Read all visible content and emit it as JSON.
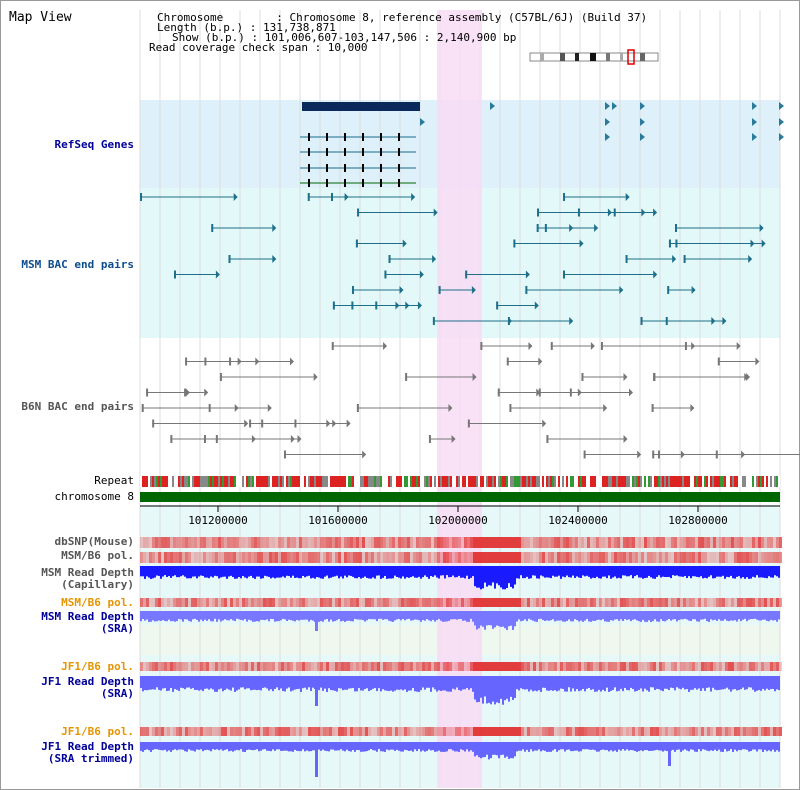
{
  "map": {
    "title": "Map View",
    "info": {
      "chromosome": "Chromosome        : Chromosome 8, reference assembly (C57BL/6J) (Build 37)",
      "length": "Length (b.p.) : 131,738,871",
      "show": "Show (b.p.) : 101,006,607-103,147,506 : 2,140,900 bp",
      "coverage": "Read coverage check span : 10,000"
    }
  },
  "tracks": {
    "refseq": "RefSeq Genes",
    "msm_bac": "MSM BAC end pairs",
    "b6n_bac": "B6N BAC end pairs",
    "repeat": "Repeat",
    "chromosome": "chromosome 8",
    "dbsnp": "dbSNP(Mouse)",
    "msm_b6_pol": "MSM/B6 pol.",
    "msm_read_depth_cap": "MSM Read Depth\n(Capillary)",
    "msm_b6_pol_sra": "MSM/B6 pol.",
    "msm_read_depth_sra": "MSM Read Depth\n(SRA)",
    "jf1_b6_pol": "JF1/B6 pol.",
    "jf1_read_depth_sra": "JF1 Read Depth\n(SRA)",
    "jf1_b6_pol_trim": "JF1/B6 pol.",
    "jf1_read_depth_trim": "JF1 Read Depth\n(SRA trimmed)"
  },
  "ruler": {
    "ticks": [
      "101200000",
      "101600000",
      "102000000",
      "102400000",
      "102800000"
    ]
  },
  "colors": {
    "refseq_bg": "#def0fa",
    "bac_bg": "#e3f8f8",
    "highlight": "#f8dcf4",
    "msm_label": "#000099",
    "pol_label": "#e69500",
    "chromosome": "#006600",
    "depth": "#3333ff"
  }
}
